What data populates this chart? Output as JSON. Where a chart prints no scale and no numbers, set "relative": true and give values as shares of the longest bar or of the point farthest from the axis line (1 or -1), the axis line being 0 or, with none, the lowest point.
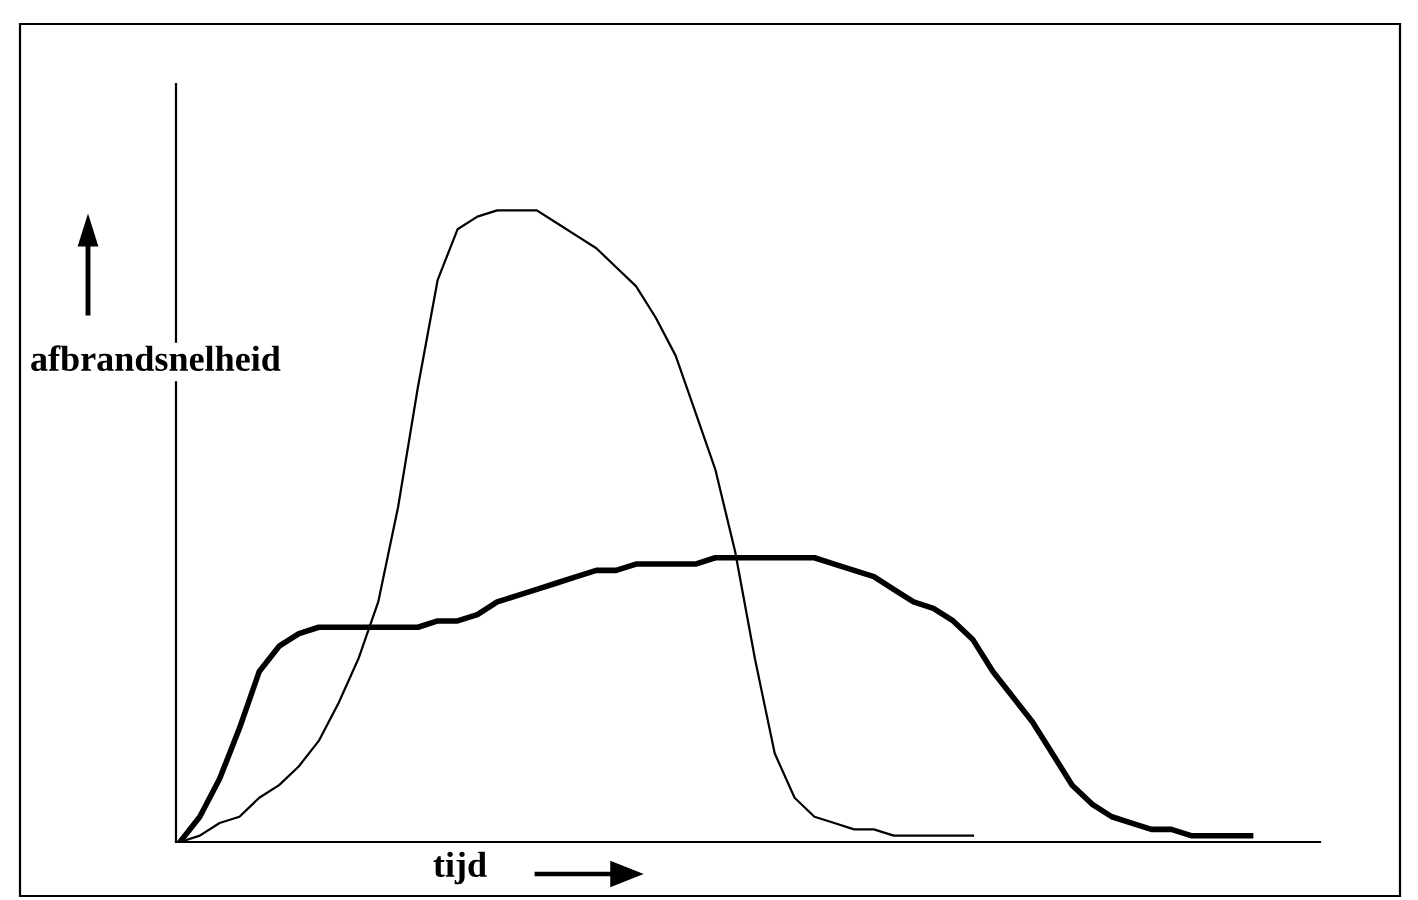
{
  "chart_data": {
    "type": "line",
    "relative": true,
    "xlabel": "tijd",
    "ylabel": "afbrandsnelheid",
    "grid": false,
    "legend": false,
    "categories": [
      null,
      null,
      null,
      null,
      null,
      null,
      null,
      null,
      null,
      null,
      null,
      null,
      null,
      null,
      null,
      null,
      null,
      null,
      null,
      null,
      null,
      null,
      null,
      null,
      null,
      null,
      null,
      null,
      null,
      null,
      null,
      null,
      null,
      null,
      null,
      null,
      null,
      null,
      null,
      null,
      null,
      null,
      null,
      null,
      null,
      null,
      null,
      null,
      null,
      null,
      null,
      null,
      null,
      null,
      null,
      null
    ],
    "series": [
      {
        "color": "#000000",
        "values": [
          0,
          0.01,
          0.03,
          0.04,
          0.07,
          0.09,
          0.12,
          0.16,
          0.22,
          0.29,
          0.38,
          0.53,
          0.72,
          0.89,
          0.97,
          0.99,
          1,
          1,
          1,
          0.98,
          0.96,
          0.94,
          0.91,
          0.88,
          0.83,
          0.77,
          0.68,
          0.59,
          0.46,
          0.29,
          0.14,
          0.07,
          0.04,
          0.03,
          0.02,
          0.02,
          0.01,
          0.01,
          0.01,
          0.01,
          0.01,
          null,
          null,
          null,
          null,
          null,
          null,
          null,
          null,
          null,
          null,
          null,
          null,
          null,
          null,
          null
        ]
      },
      {
        "color": "#000000",
        "values": [
          0,
          0.04,
          0.1,
          0.18,
          0.27,
          0.31,
          0.33,
          0.34,
          0.34,
          0.34,
          0.34,
          0.34,
          0.34,
          0.35,
          0.35,
          0.36,
          0.38,
          0.39,
          0.4,
          0.41,
          0.42,
          0.43,
          0.43,
          0.44,
          0.44,
          0.44,
          0.44,
          0.45,
          0.45,
          0.45,
          0.45,
          0.45,
          0.45,
          0.44,
          0.43,
          0.42,
          0.4,
          0.38,
          0.37,
          0.35,
          0.32,
          0.27,
          0.23,
          0.19,
          0.14,
          0.09,
          0.06,
          0.04,
          0.03,
          0.02,
          0.02,
          0.01,
          0.01,
          0.01,
          0.01,
          null
        ]
      }
    ]
  }
}
